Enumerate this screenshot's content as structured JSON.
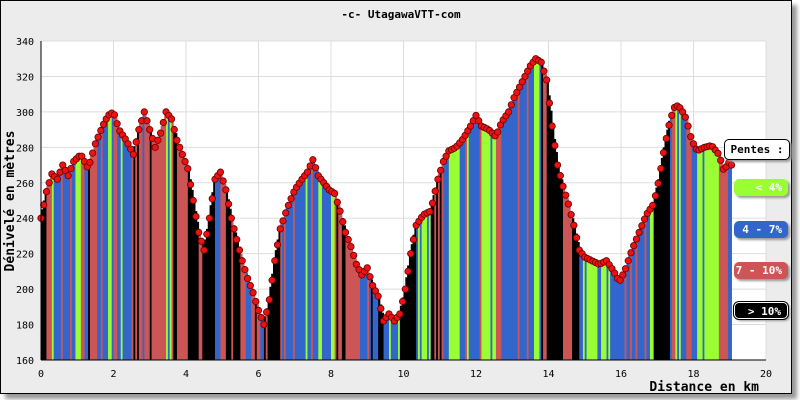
{
  "chart_data": {
    "type": "area",
    "title": "-c- UtagawaVTT-com",
    "xlabel": "Distance en km",
    "ylabel": "Dénivelé en mètres",
    "xlim": [
      0,
      20
    ],
    "ylim": [
      160,
      340
    ],
    "x_ticks": [
      0,
      2,
      4,
      6,
      8,
      10,
      12,
      14,
      16,
      18,
      20
    ],
    "y_ticks": [
      160,
      180,
      200,
      220,
      240,
      260,
      280,
      300,
      320,
      340
    ],
    "grid": true,
    "legend_position": "right",
    "profile": [
      [
        0,
        240
      ],
      [
        0.15,
        255
      ],
      [
        0.3,
        265
      ],
      [
        0.45,
        262
      ],
      [
        0.6,
        270
      ],
      [
        0.75,
        264
      ],
      [
        0.9,
        272
      ],
      [
        1.1,
        276
      ],
      [
        1.3,
        268
      ],
      [
        1.5,
        282
      ],
      [
        1.7,
        292
      ],
      [
        1.85,
        298
      ],
      [
        2.0,
        300
      ],
      [
        2.15,
        290
      ],
      [
        2.35,
        284
      ],
      [
        2.55,
        276
      ],
      [
        2.7,
        290
      ],
      [
        2.85,
        300
      ],
      [
        3.0,
        290
      ],
      [
        3.15,
        280
      ],
      [
        3.3,
        288
      ],
      [
        3.45,
        300
      ],
      [
        3.6,
        296
      ],
      [
        3.75,
        284
      ],
      [
        3.9,
        276
      ],
      [
        4.05,
        268
      ],
      [
        4.2,
        250
      ],
      [
        4.35,
        232
      ],
      [
        4.5,
        222
      ],
      [
        4.65,
        240
      ],
      [
        4.8,
        262
      ],
      [
        4.95,
        266
      ],
      [
        5.1,
        256
      ],
      [
        5.25,
        240
      ],
      [
        5.4,
        228
      ],
      [
        5.55,
        216
      ],
      [
        5.7,
        206
      ],
      [
        5.85,
        198
      ],
      [
        6.0,
        188
      ],
      [
        6.15,
        180
      ],
      [
        6.3,
        194
      ],
      [
        6.45,
        216
      ],
      [
        6.6,
        234
      ],
      [
        6.8,
        246
      ],
      [
        7.0,
        256
      ],
      [
        7.2,
        262
      ],
      [
        7.35,
        266
      ],
      [
        7.5,
        273
      ],
      [
        7.65,
        264
      ],
      [
        7.8,
        260
      ],
      [
        7.95,
        256
      ],
      [
        8.1,
        254
      ],
      [
        8.25,
        244
      ],
      [
        8.4,
        232
      ],
      [
        8.55,
        224
      ],
      [
        8.7,
        214
      ],
      [
        8.85,
        208
      ],
      [
        9.0,
        212
      ],
      [
        9.15,
        202
      ],
      [
        9.3,
        196
      ],
      [
        9.45,
        182
      ],
      [
        9.6,
        186
      ],
      [
        9.75,
        182
      ],
      [
        9.9,
        186
      ],
      [
        10.05,
        200
      ],
      [
        10.2,
        220
      ],
      [
        10.35,
        236
      ],
      [
        10.55,
        242
      ],
      [
        10.75,
        244
      ],
      [
        10.95,
        262
      ],
      [
        11.1,
        272
      ],
      [
        11.25,
        278
      ],
      [
        11.45,
        280
      ],
      [
        11.65,
        285
      ],
      [
        11.85,
        292
      ],
      [
        12.0,
        298
      ],
      [
        12.15,
        292
      ],
      [
        12.35,
        290
      ],
      [
        12.55,
        286
      ],
      [
        12.7,
        294
      ],
      [
        12.9,
        300
      ],
      [
        13.05,
        308
      ],
      [
        13.2,
        314
      ],
      [
        13.35,
        320
      ],
      [
        13.5,
        326
      ],
      [
        13.65,
        330
      ],
      [
        13.8,
        328
      ],
      [
        13.95,
        318
      ],
      [
        14.1,
        292
      ],
      [
        14.25,
        270
      ],
      [
        14.4,
        258
      ],
      [
        14.55,
        248
      ],
      [
        14.7,
        236
      ],
      [
        14.85,
        222
      ],
      [
        15.0,
        218
      ],
      [
        15.2,
        216
      ],
      [
        15.4,
        214
      ],
      [
        15.6,
        216
      ],
      [
        15.8,
        210
      ],
      [
        15.95,
        204
      ],
      [
        16.1,
        210
      ],
      [
        16.3,
        222
      ],
      [
        16.5,
        232
      ],
      [
        16.7,
        242
      ],
      [
        16.9,
        248
      ],
      [
        17.05,
        262
      ],
      [
        17.2,
        280
      ],
      [
        17.35,
        295
      ],
      [
        17.5,
        304
      ],
      [
        17.65,
        302
      ],
      [
        17.8,
        296
      ],
      [
        17.95,
        284
      ],
      [
        18.1,
        278
      ],
      [
        18.3,
        280
      ],
      [
        18.5,
        281
      ],
      [
        18.7,
        276
      ],
      [
        18.85,
        266
      ],
      [
        18.95,
        272
      ],
      [
        19.05,
        270
      ]
    ],
    "legend": {
      "title": "Pentes :",
      "items": [
        {
          "label": "< 4%",
          "color": "#99ff33",
          "text_color": "#ffffff"
        },
        {
          "label": "4 - 7%",
          "color": "#3366cc",
          "text_color": "#ffffff"
        },
        {
          "label": "7 - 10%",
          "color": "#cc5555",
          "text_color": "#ffffff"
        },
        {
          "label": "> 10%",
          "color": "#000000",
          "text_color": "#ffffff"
        }
      ]
    },
    "marker_color": "#ee1111"
  }
}
